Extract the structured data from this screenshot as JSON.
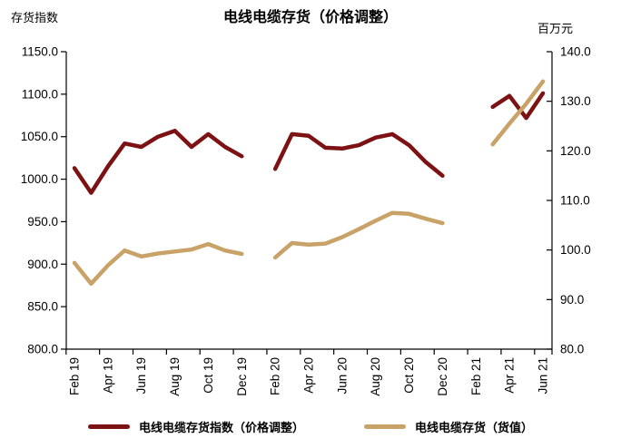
{
  "header": {
    "left_axis_label": "存货指数",
    "title": "电线电缆存货（价格调整）",
    "right_axis_label": "百万元"
  },
  "chart_data": {
    "type": "line",
    "categories": [
      "Feb 19",
      "Mar 19",
      "Apr 19",
      "May 19",
      "Jun 19",
      "Jul 19",
      "Aug 19",
      "Sep 19",
      "Oct 19",
      "Nov 19",
      "Dec 19",
      "Jan 20",
      "Feb 20",
      "Mar 20",
      "Apr 20",
      "May 20",
      "Jun 20",
      "Jul 20",
      "Aug 20",
      "Sep 20",
      "Oct 20",
      "Nov 20",
      "Dec 20",
      "Jan 21",
      "Feb 21",
      "Mar 21",
      "Apr 21",
      "May 21",
      "Jun 21"
    ],
    "x_tick_labels": [
      "Feb 19",
      "Apr 19",
      "Jun 19",
      "Aug 19",
      "Oct 19",
      "Dec 19",
      "Feb 20",
      "Apr 20",
      "Jun 20",
      "Aug 20",
      "Oct 20",
      "Dec 20",
      "Feb 21",
      "Apr 21",
      "Jun 21"
    ],
    "x_labels_shown_every": 2,
    "series": [
      {
        "name": "电线电缆存货指数（价格调整）",
        "axis": "left",
        "color": "#7D1214",
        "values": [
          1013,
          984,
          1015,
          1042,
          1038,
          1050,
          1057,
          1038,
          1053,
          1038,
          1027,
          null,
          1012,
          1053,
          1051,
          1037,
          1036,
          1040,
          1049,
          1053,
          1040,
          1020,
          1004,
          null,
          null,
          1085,
          1098,
          1072,
          1101
        ]
      },
      {
        "name": "电线电缆存货（货值）",
        "axis": "right",
        "color": "#C9A268",
        "values": [
          97.4,
          93.2,
          96.9,
          99.9,
          98.7,
          99.3,
          99.7,
          100.1,
          101.2,
          99.9,
          99.2,
          null,
          98.5,
          101.4,
          101.1,
          101.3,
          102.6,
          104.2,
          105.9,
          107.5,
          107.3,
          106.3,
          105.4,
          null,
          null,
          121.3,
          125.5,
          129.5,
          134.0
        ]
      }
    ],
    "y_left": {
      "label": "存货指数",
      "min": 800,
      "max": 1150,
      "step": 50,
      "ticks": [
        "1150.0",
        "1100.0",
        "1050.0",
        "1000.0",
        "950.0",
        "900.0",
        "850.0",
        "800.0"
      ]
    },
    "y_right": {
      "label": "百万元",
      "min": 80,
      "max": 140,
      "step": 10,
      "ticks": [
        "140.0",
        "130.0",
        "120.0",
        "110.0",
        "100.0",
        "90.0",
        "80.0"
      ]
    },
    "title": "电线电缆存货（价格调整）",
    "grid": false,
    "legend_position": "bottom"
  },
  "legend": {
    "items": [
      {
        "label": "电线电缆存货指数（价格调整）",
        "color": "#7D1214"
      },
      {
        "label": "电线电缆存货（货值）",
        "color": "#C9A268"
      }
    ]
  }
}
